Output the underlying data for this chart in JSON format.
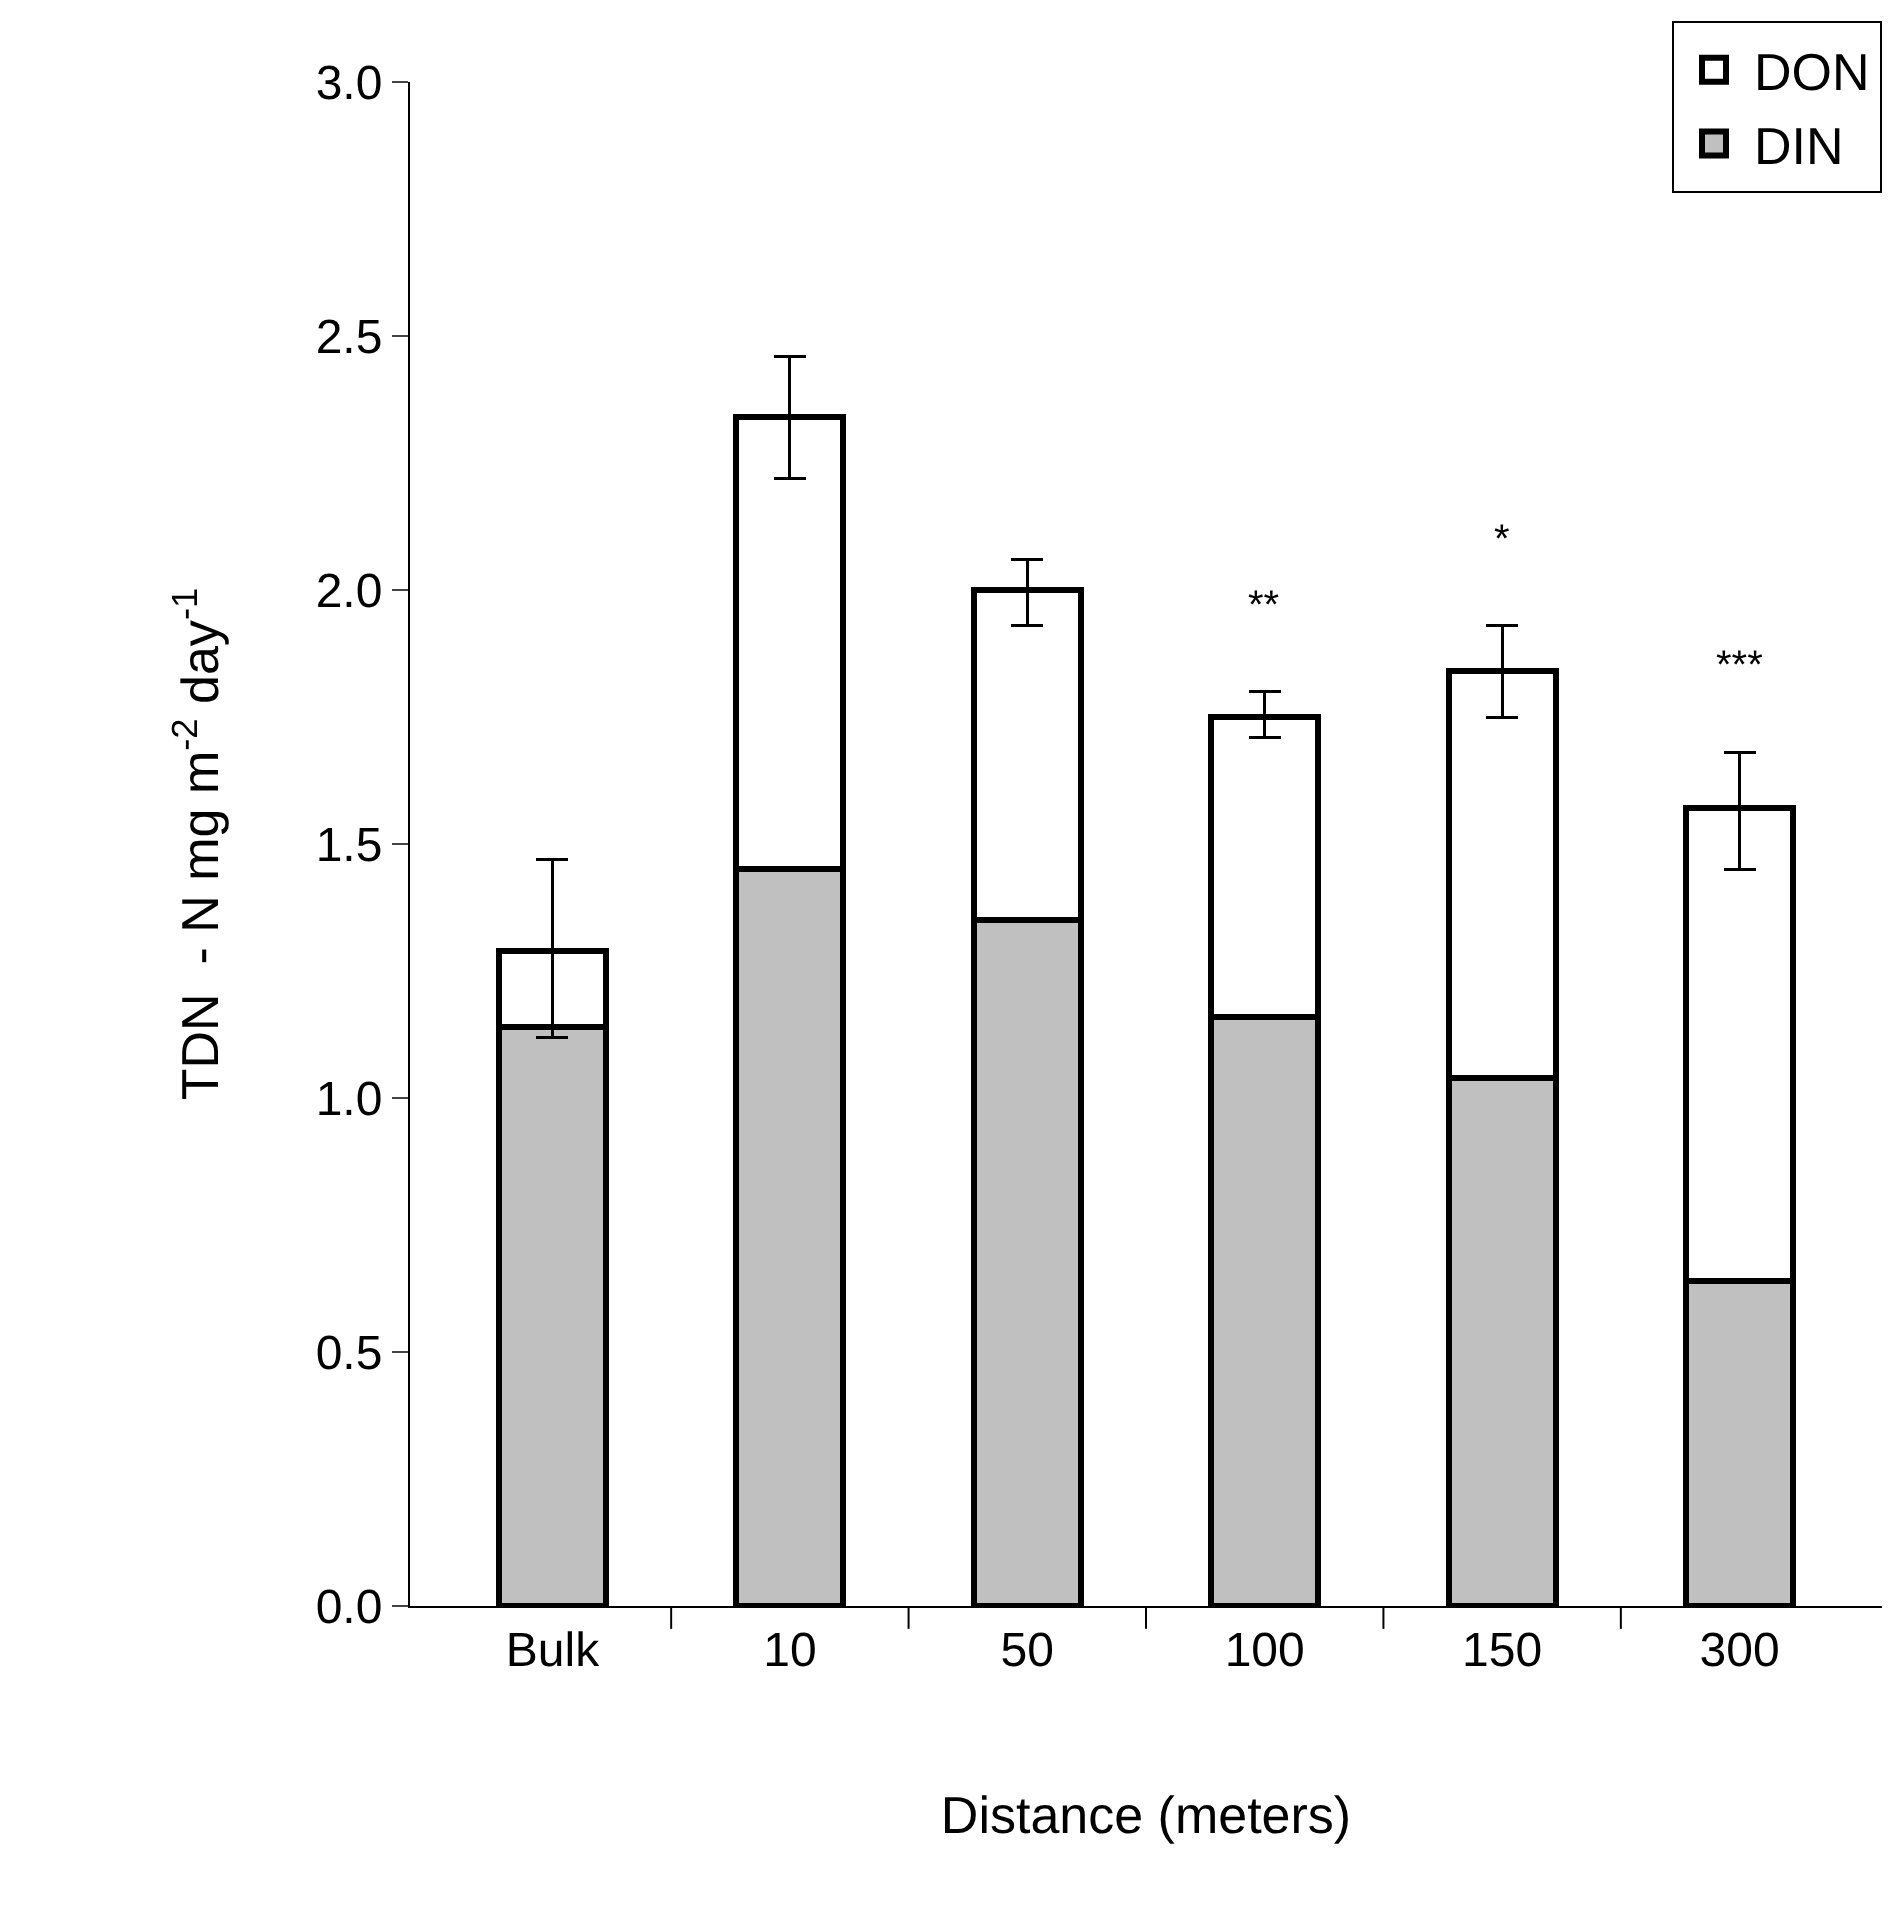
{
  "chart_data": {
    "type": "bar",
    "stacked": true,
    "categories": [
      "Bulk",
      "10",
      "50",
      "100",
      "150",
      "300"
    ],
    "series": [
      {
        "name": "DIN",
        "color": "#c0c0c0",
        "values": [
          1.14,
          1.45,
          1.35,
          1.16,
          1.04,
          0.64
        ]
      },
      {
        "name": "DON",
        "color": "#ffffff",
        "values": [
          0.15,
          0.89,
          0.65,
          0.59,
          0.8,
          0.93
        ],
        "errors": [
          [
            1.12,
            1.47
          ],
          [
            2.22,
            2.46
          ],
          [
            1.93,
            2.06
          ],
          [
            1.71,
            1.8
          ],
          [
            1.75,
            1.93
          ],
          [
            1.45,
            1.68
          ]
        ]
      }
    ],
    "xlabel": "Distance (meters)",
    "ylabel": "TDN  - N mg m$^{-2}$ day$^{-1}$",
    "ylim": [
      0,
      3
    ],
    "yticks": [
      {
        "value": 0,
        "label": "0.0"
      },
      {
        "value": 0.5,
        "label": "0.5"
      },
      {
        "value": 1,
        "label": "1.0"
      },
      {
        "value": 1.5,
        "label": "1.5"
      },
      {
        "value": 2,
        "label": "2.0"
      },
      {
        "value": 2.5,
        "label": "2.5"
      },
      {
        "value": 3,
        "label": "3.0"
      }
    ],
    "annotations": [
      {
        "text": "**",
        "x": "100",
        "y": 1.8
      },
      {
        "text": "*",
        "x": "150",
        "y": 1.93
      },
      {
        "text": "***",
        "x": "300",
        "y": 1.68
      }
    ],
    "grid": false,
    "legend": "top right"
  }
}
